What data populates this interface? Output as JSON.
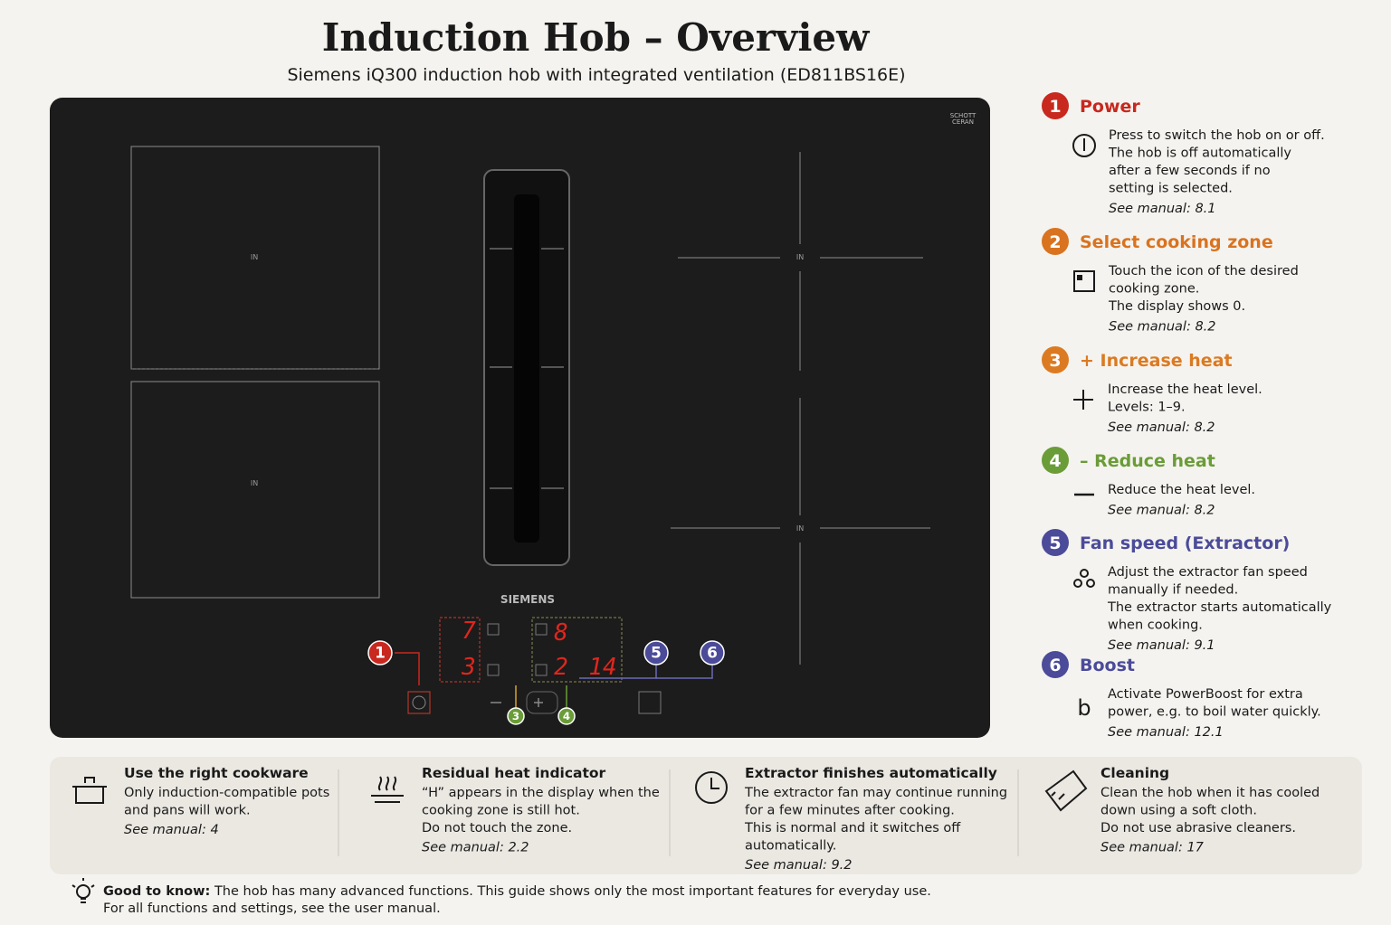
{
  "header": {
    "title": "Induction Hob – Overview",
    "subtitle": "Siemens iQ300 induction hob with integrated ventilation (ED811BS16E)"
  },
  "hob": {
    "glass_brand": [
      "SCHOTT",
      "CERAN"
    ],
    "brand": "SIEMENS",
    "zone_labels": [
      "IN",
      "IN",
      "IN",
      "IN"
    ],
    "display": [
      "7",
      "3",
      "8",
      "2",
      "14"
    ],
    "callouts": [
      "1",
      "5",
      "6",
      "3",
      "4"
    ]
  },
  "steps": [
    {
      "number": "1",
      "title": "Power",
      "color": "#c8281e",
      "lines": [
        "Press to switch the hob on or off.",
        "The hob is off automatically",
        "after a few seconds if no",
        "setting is selected."
      ],
      "manual": "See manual: 8.1"
    },
    {
      "number": "2",
      "title": "Select cooking zone",
      "color": "#d9731f",
      "lines": [
        "Touch the icon of the desired",
        "cooking zone.",
        "The display shows 0."
      ],
      "manual": "See manual: 8.2"
    },
    {
      "number": "3",
      "title": "+ Increase heat",
      "color": "#dc7a22",
      "lines": [
        "Increase the heat level.",
        "Levels: 1–9."
      ],
      "manual": "See manual: 8.2"
    },
    {
      "number": "4",
      "title": "– Reduce heat",
      "color": "#6a9c38",
      "lines": [
        "Reduce the heat level."
      ],
      "manual": "See manual: 8.2"
    },
    {
      "number": "5",
      "title": "Fan speed (Extractor)",
      "color": "#4b4b9a",
      "lines": [
        "Adjust the extractor fan speed",
        "manually if needed.",
        "The extractor starts automatically",
        "when cooking."
      ],
      "manual": "See manual: 9.1"
    },
    {
      "number": "6",
      "title": "Boost",
      "color": "#4b4b9a",
      "symbol": "b",
      "lines": [
        "Activate PowerBoost for extra",
        "power, e.g. to boil water quickly."
      ],
      "manual": "See manual: 12.1"
    }
  ],
  "tips": [
    {
      "title": "Use the right cookware",
      "lines": [
        "Only induction-compatible pots",
        "and pans will work."
      ],
      "manual": "See manual: 4"
    },
    {
      "title": "Residual heat indicator",
      "lines": [
        "“H” appears in the display when the",
        "cooking zone is still hot.",
        "Do not touch the zone."
      ],
      "manual": "See manual: 2.2"
    },
    {
      "title": "Extractor finishes automatically",
      "lines": [
        "The extractor fan may continue running",
        "for a few minutes after cooking.",
        "This is normal and it switches off",
        "automatically."
      ],
      "manual": "See manual: 9.2"
    },
    {
      "title": "Cleaning",
      "lines": [
        "Clean the hob when it has cooled",
        "down using a soft cloth.",
        "Do not use abrasive cleaners."
      ],
      "manual": "See manual: 17"
    }
  ],
  "footer": {
    "label": "Good to know:",
    "lines": [
      "The hob has many advanced functions. This guide shows only the most important features for everyday use.",
      "For all functions and settings, see the user manual."
    ]
  }
}
